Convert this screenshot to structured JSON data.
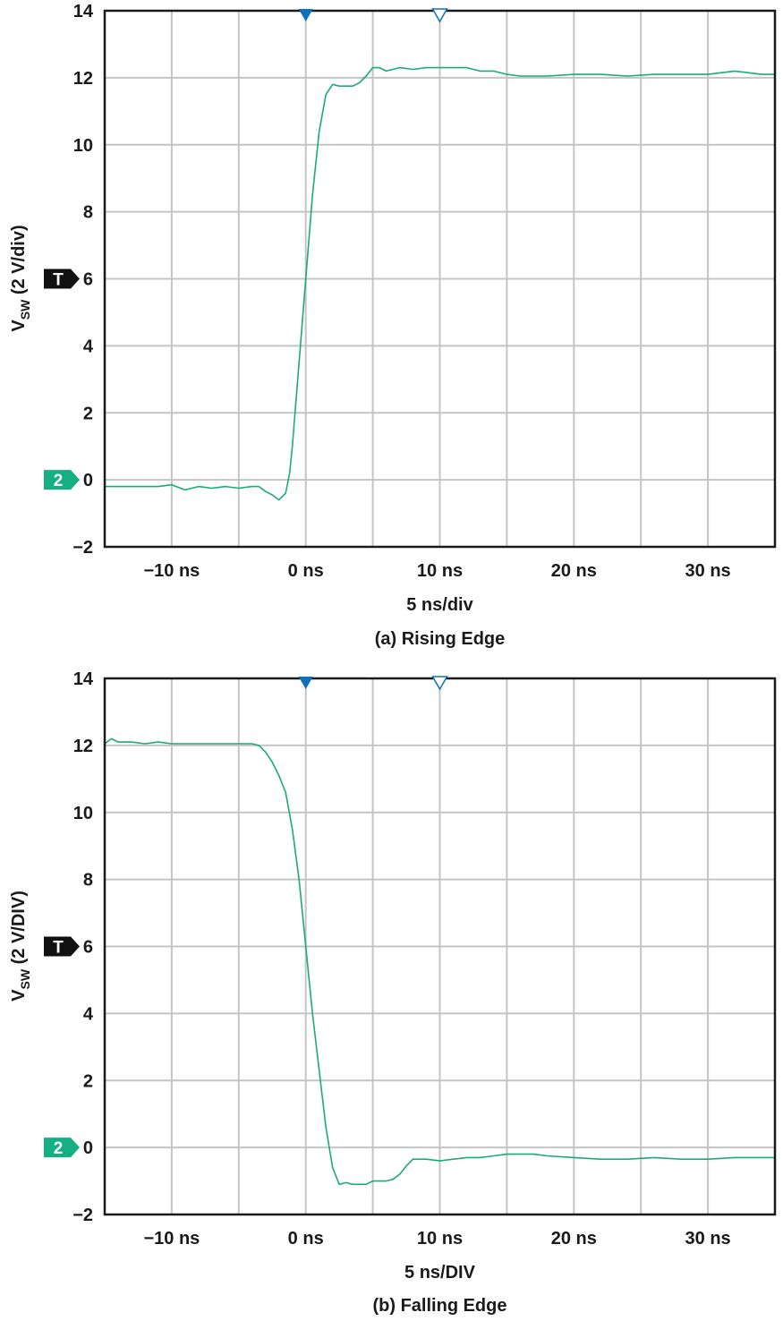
{
  "colors": {
    "trace": "#1aaa7f",
    "grid": "#c4c4c4",
    "frame": "#1a1a1a",
    "trigger_marker": "#1070b8",
    "badge_t": "#111111",
    "badge_2": "#14b082"
  },
  "chart_data": [
    {
      "type": "line",
      "caption": "(a) Rising Edge",
      "xlabel": "5 ns/div",
      "ylabel": {
        "main": "V",
        "sub": "SW",
        "rest": " (2 V/div)"
      },
      "xlim": [
        -15,
        35
      ],
      "ylim": [
        -2,
        14
      ],
      "x_ticks": [
        -10,
        0,
        10,
        20,
        30
      ],
      "x_tick_labels": [
        "−10 ns",
        "0 ns",
        "10 ns",
        "20 ns",
        "30 ns"
      ],
      "y_ticks": [
        14,
        12,
        10,
        8,
        6,
        4,
        2,
        0,
        -2
      ],
      "y_tick_labels": [
        "14",
        "12",
        "10",
        "8",
        "6",
        "4",
        "2",
        "0",
        "−2"
      ],
      "grid": true,
      "markers": {
        "trigger_filled_x": 0,
        "trigger_open_x": 10,
        "t_badge_label": "T",
        "t_badge_y": 6,
        "ch_badge_label": "2",
        "ch_badge_y": 0
      },
      "series": [
        {
          "x": [
            -15,
            -13,
            -11,
            -10,
            -9,
            -8,
            -7,
            -6,
            -5,
            -4,
            -3.5,
            -3,
            -2.5,
            -2,
            -1.5,
            -1.2,
            -1,
            -0.5,
            0,
            0.5,
            1,
            1.5,
            2,
            2.5,
            3,
            3.5,
            4,
            4.5,
            5,
            5.5,
            6,
            7,
            8,
            9,
            10,
            11,
            12,
            13,
            14,
            15,
            16,
            18,
            20,
            22,
            24,
            26,
            28,
            30,
            32,
            34,
            35
          ],
          "y": [
            -0.2,
            -0.2,
            -0.2,
            -0.15,
            -0.3,
            -0.2,
            -0.25,
            -0.2,
            -0.25,
            -0.2,
            -0.2,
            -0.35,
            -0.45,
            -0.6,
            -0.4,
            0.2,
            1.0,
            3.5,
            6.0,
            8.5,
            10.4,
            11.5,
            11.8,
            11.75,
            11.75,
            11.75,
            11.85,
            12.05,
            12.3,
            12.3,
            12.2,
            12.3,
            12.25,
            12.3,
            12.3,
            12.3,
            12.3,
            12.2,
            12.2,
            12.1,
            12.05,
            12.05,
            12.1,
            12.1,
            12.05,
            12.1,
            12.1,
            12.1,
            12.2,
            12.1,
            12.1
          ]
        }
      ]
    },
    {
      "type": "line",
      "caption": "(b) Falling Edge",
      "xlabel": "5 ns/DIV",
      "ylabel": {
        "main": "V",
        "sub": "SW",
        "rest": " (2 V/DIV)"
      },
      "xlim": [
        -15,
        35
      ],
      "ylim": [
        -2,
        14
      ],
      "x_ticks": [
        -10,
        0,
        10,
        20,
        30
      ],
      "x_tick_labels": [
        "−10 ns",
        "0 ns",
        "10 ns",
        "20 ns",
        "30 ns"
      ],
      "y_ticks": [
        14,
        12,
        10,
        8,
        6,
        4,
        2,
        0,
        -2
      ],
      "y_tick_labels": [
        "14",
        "12",
        "10",
        "8",
        "6",
        "4",
        "2",
        "0",
        "−2"
      ],
      "grid": true,
      "markers": {
        "trigger_filled_x": 0,
        "trigger_open_x": 10,
        "t_badge_label": "T",
        "t_badge_y": 6,
        "ch_badge_label": "2",
        "ch_badge_y": 0
      },
      "series": [
        {
          "x": [
            -15,
            -14.5,
            -14,
            -13,
            -12,
            -11,
            -10,
            -8,
            -6,
            -4,
            -3.5,
            -3,
            -2.5,
            -2,
            -1.5,
            -1,
            -0.5,
            0,
            0.5,
            1,
            1.5,
            2,
            2.5,
            3,
            3.5,
            4,
            4.5,
            5,
            6,
            6.5,
            7,
            7.5,
            8,
            9,
            10,
            11,
            12,
            13,
            14,
            15,
            16,
            17,
            18,
            20,
            22,
            24,
            26,
            28,
            30,
            32,
            34,
            35
          ],
          "y": [
            12.05,
            12.2,
            12.1,
            12.1,
            12.05,
            12.1,
            12.05,
            12.05,
            12.05,
            12.05,
            12.0,
            11.8,
            11.5,
            11.1,
            10.6,
            9.5,
            8.0,
            6.0,
            4.0,
            2.3,
            0.6,
            -0.6,
            -1.1,
            -1.05,
            -1.1,
            -1.1,
            -1.1,
            -1.0,
            -1.0,
            -0.95,
            -0.8,
            -0.55,
            -0.35,
            -0.35,
            -0.4,
            -0.35,
            -0.3,
            -0.3,
            -0.25,
            -0.2,
            -0.2,
            -0.2,
            -0.25,
            -0.3,
            -0.35,
            -0.35,
            -0.3,
            -0.35,
            -0.35,
            -0.3,
            -0.3,
            -0.3
          ]
        }
      ]
    }
  ]
}
